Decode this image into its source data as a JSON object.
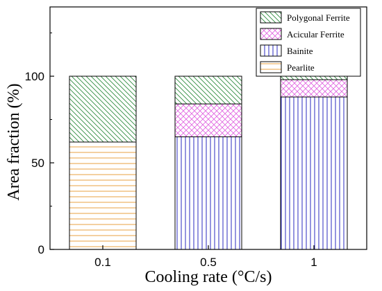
{
  "chart_data": {
    "type": "bar",
    "stacked": true,
    "title": "",
    "xlabel": "Cooling rate (°C/s)",
    "ylabel": "Area fraction (%)",
    "categories": [
      "0.1",
      "0.5",
      "1"
    ],
    "ylim": [
      0,
      140
    ],
    "yticks": [
      0,
      50,
      100
    ],
    "grid": false,
    "legend_position": "top-right",
    "series": [
      {
        "name": "Pearlite",
        "values": [
          62,
          0,
          0
        ],
        "color": "#E8A040",
        "pattern": "horizontal-lines"
      },
      {
        "name": "Bainite",
        "values": [
          0,
          65,
          88
        ],
        "color": "#2A2ABF",
        "pattern": "vertical-lines"
      },
      {
        "name": "Acicular Ferrite",
        "values": [
          0,
          19,
          10
        ],
        "color": "#E060E0",
        "pattern": "crosshatch"
      },
      {
        "name": "Polygonal Ferrite",
        "values": [
          38,
          16,
          2
        ],
        "color": "#2E8B3E",
        "pattern": "diagonal-lines"
      }
    ],
    "legend_order": [
      "Polygonal Ferrite",
      "Acicular Ferrite",
      "Bainite",
      "Pearlite"
    ]
  }
}
